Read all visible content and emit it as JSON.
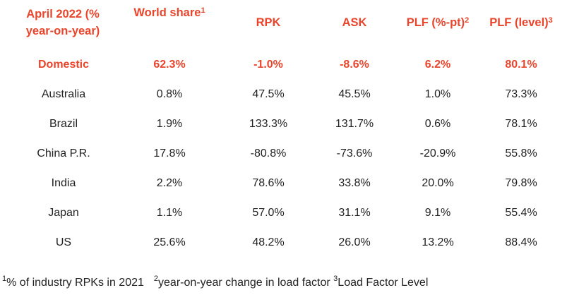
{
  "headers": {
    "col0_line1": "April 2022 (%",
    "col0_line2": "year-on-year)",
    "col1": "World share",
    "col1_sup": "1",
    "col2": "RPK",
    "col3": "ASK",
    "col4": "PLF (%-pt)",
    "col4_sup": "2",
    "col5": "PLF (level)",
    "col5_sup": "3"
  },
  "rows": [
    {
      "market": "Domestic",
      "world_share": "62.3%",
      "rpk": "-1.0%",
      "ask": "-8.6%",
      "plf_pt": "6.2%",
      "plf_level": "80.1%"
    },
    {
      "market": "Australia",
      "world_share": "0.8%",
      "rpk": "47.5%",
      "ask": "45.5%",
      "plf_pt": "1.0%",
      "plf_level": "73.3%"
    },
    {
      "market": "Brazil",
      "world_share": "1.9%",
      "rpk": "133.3%",
      "ask": "131.7%",
      "plf_pt": "0.6%",
      "plf_level": "78.1%"
    },
    {
      "market": "China P.R.",
      "world_share": "17.8%",
      "rpk": "-80.8%",
      "ask": "-73.6%",
      "plf_pt": "-20.9%",
      "plf_level": "55.8%"
    },
    {
      "market": "India",
      "world_share": "2.2%",
      "rpk": "78.6%",
      "ask": "33.8%",
      "plf_pt": "20.0%",
      "plf_level": "79.8%"
    },
    {
      "market": "Japan",
      "world_share": "1.1%",
      "rpk": "57.0%",
      "ask": "31.1%",
      "plf_pt": "9.1%",
      "plf_level": "55.4%"
    },
    {
      "market": "US",
      "world_share": "25.6%",
      "rpk": "48.2%",
      "ask": "26.0%",
      "plf_pt": "13.2%",
      "plf_level": "88.4%"
    }
  ],
  "footnotes": {
    "fn1_sup": "1",
    "fn1_text": "% of industry RPKs in 2021",
    "fn2_sup": "2",
    "fn2_text": "year-on-year change in load factor",
    "fn3_sup": "3",
    "fn3_text": "Load Factor Level"
  },
  "colors": {
    "accent": "#e8452c",
    "text": "#222222"
  }
}
